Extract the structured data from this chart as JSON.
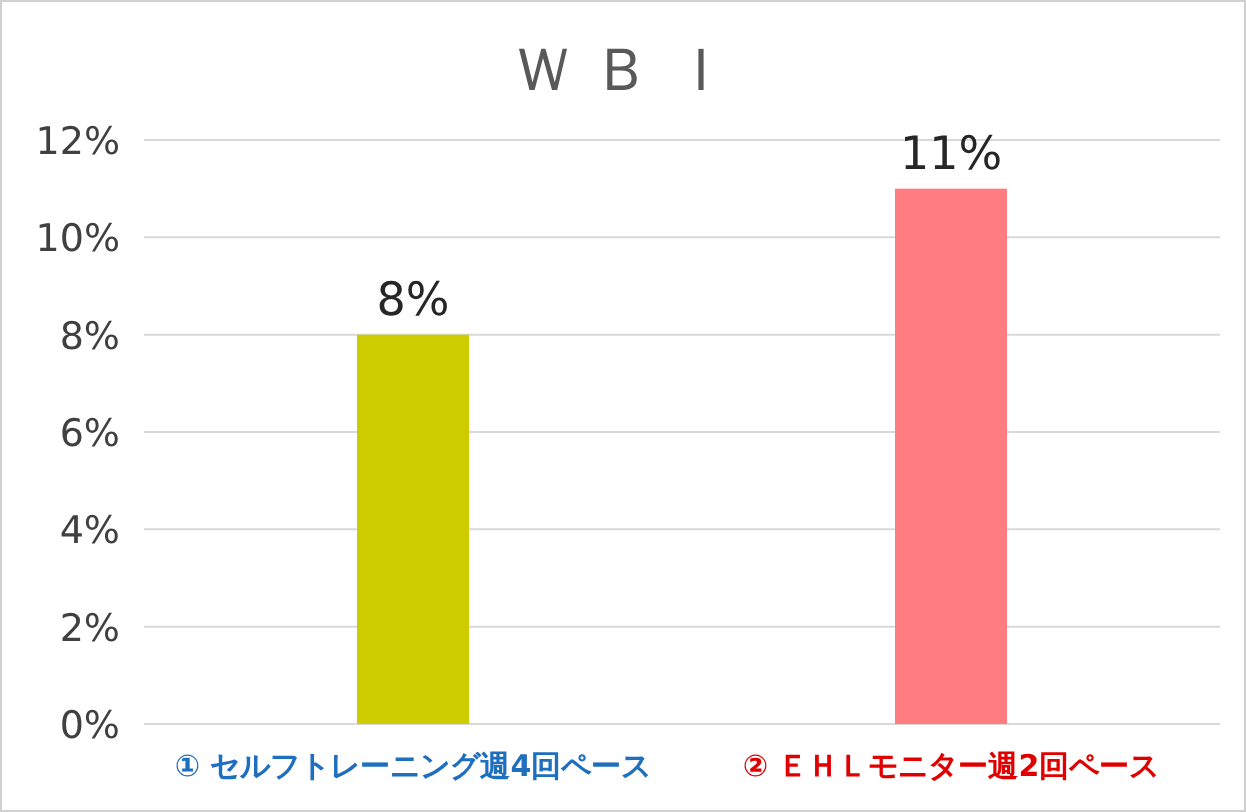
{
  "chart_data": {
    "type": "bar",
    "title": "Ｗ Ｂ Ｉ",
    "categories": [
      "① セルフトレーニング週4回ペース",
      "② ＥＨＬモニター週2回ペース"
    ],
    "values": [
      8,
      11
    ],
    "colors": [
      "#cccc00",
      "#ff7c80"
    ],
    "ylim": [
      0,
      12
    ],
    "yticks": [
      {
        "value": 0,
        "label": "0%"
      },
      {
        "value": 2,
        "label": "2%"
      },
      {
        "value": 4,
        "label": "4%"
      },
      {
        "value": 6,
        "label": "6%"
      },
      {
        "value": 8,
        "label": "8%"
      },
      {
        "value": 10,
        "label": "10%"
      },
      {
        "value": 12,
        "label": "12%"
      }
    ],
    "value_labels": [
      "8%",
      "11%"
    ],
    "grid": "y"
  }
}
